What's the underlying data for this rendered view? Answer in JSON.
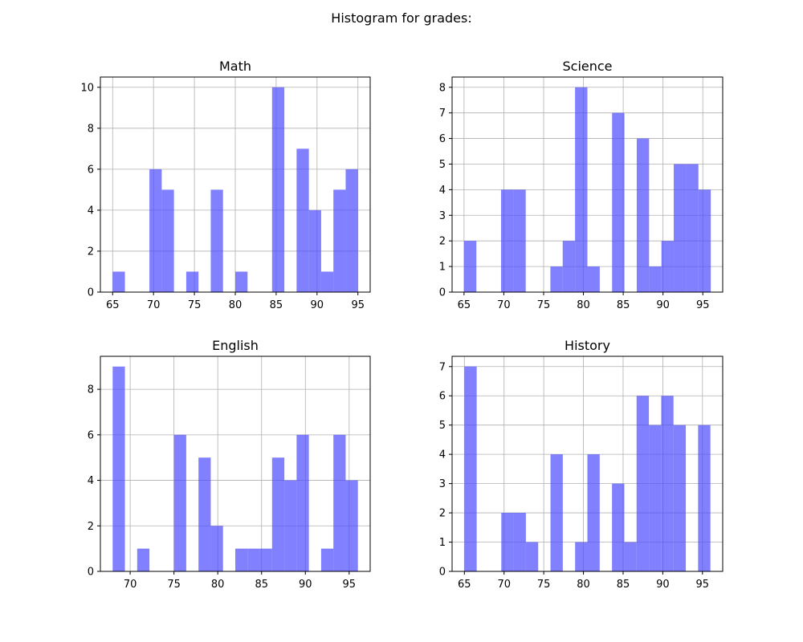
{
  "figure": {
    "title": "Histogram for grades:"
  },
  "style": {
    "bar_color": "#4b4bff",
    "bar_alpha": 0.7,
    "grid_color": "#b0b0b0"
  },
  "chart_data": [
    {
      "type": "bar",
      "title": "Math",
      "xlim": [
        63.5,
        96.5
      ],
      "ylim": [
        0,
        10.5
      ],
      "xticks": [
        65,
        70,
        75,
        80,
        85,
        90,
        95
      ],
      "yticks": [
        0,
        2,
        4,
        6,
        8,
        10
      ],
      "grid": true,
      "bins": [
        {
          "x0": 65,
          "x1": 66.5,
          "count": 1
        },
        {
          "x0": 66.5,
          "x1": 68,
          "count": 0
        },
        {
          "x0": 68,
          "x1": 69.5,
          "count": 0
        },
        {
          "x0": 69.5,
          "x1": 71,
          "count": 6
        },
        {
          "x0": 71,
          "x1": 72.5,
          "count": 5
        },
        {
          "x0": 72.5,
          "x1": 74,
          "count": 0
        },
        {
          "x0": 74,
          "x1": 75.5,
          "count": 1
        },
        {
          "x0": 75.5,
          "x1": 77,
          "count": 0
        },
        {
          "x0": 77,
          "x1": 78.5,
          "count": 5
        },
        {
          "x0": 78.5,
          "x1": 80,
          "count": 0
        },
        {
          "x0": 80,
          "x1": 81.5,
          "count": 1
        },
        {
          "x0": 81.5,
          "x1": 83,
          "count": 0
        },
        {
          "x0": 83,
          "x1": 84.5,
          "count": 0
        },
        {
          "x0": 84.5,
          "x1": 86,
          "count": 10
        },
        {
          "x0": 86,
          "x1": 87.5,
          "count": 0
        },
        {
          "x0": 87.5,
          "x1": 89,
          "count": 7
        },
        {
          "x0": 89,
          "x1": 90.5,
          "count": 4
        },
        {
          "x0": 90.5,
          "x1": 92,
          "count": 1
        },
        {
          "x0": 92,
          "x1": 93.5,
          "count": 5
        },
        {
          "x0": 93.5,
          "x1": 95,
          "count": 6
        }
      ]
    },
    {
      "type": "bar",
      "title": "Science",
      "xlim": [
        63.5,
        97.5
      ],
      "ylim": [
        0,
        8.4
      ],
      "xticks": [
        65,
        70,
        75,
        80,
        85,
        90,
        95
      ],
      "yticks": [
        0,
        1,
        2,
        3,
        4,
        5,
        6,
        7,
        8
      ],
      "grid": true,
      "bins": [
        {
          "x0": 65,
          "x1": 66.55,
          "count": 2
        },
        {
          "x0": 66.55,
          "x1": 68.1,
          "count": 0
        },
        {
          "x0": 68.1,
          "x1": 69.65,
          "count": 0
        },
        {
          "x0": 69.65,
          "x1": 71.2,
          "count": 4
        },
        {
          "x0": 71.2,
          "x1": 72.75,
          "count": 4
        },
        {
          "x0": 72.75,
          "x1": 74.3,
          "count": 0
        },
        {
          "x0": 74.3,
          "x1": 75.85,
          "count": 0
        },
        {
          "x0": 75.85,
          "x1": 77.4,
          "count": 1
        },
        {
          "x0": 77.4,
          "x1": 78.95,
          "count": 2
        },
        {
          "x0": 78.95,
          "x1": 80.5,
          "count": 8
        },
        {
          "x0": 80.5,
          "x1": 82.05,
          "count": 1
        },
        {
          "x0": 82.05,
          "x1": 83.6,
          "count": 0
        },
        {
          "x0": 83.6,
          "x1": 85.15,
          "count": 7
        },
        {
          "x0": 85.15,
          "x1": 86.7,
          "count": 0
        },
        {
          "x0": 86.7,
          "x1": 88.25,
          "count": 6
        },
        {
          "x0": 88.25,
          "x1": 89.8,
          "count": 1
        },
        {
          "x0": 89.8,
          "x1": 91.35,
          "count": 2
        },
        {
          "x0": 91.35,
          "x1": 92.9,
          "count": 5
        },
        {
          "x0": 92.9,
          "x1": 94.45,
          "count": 5
        },
        {
          "x0": 94.45,
          "x1": 96,
          "count": 4
        }
      ]
    },
    {
      "type": "bar",
      "title": "English",
      "xlim": [
        66.6,
        97.4
      ],
      "ylim": [
        0,
        9.45
      ],
      "xticks": [
        70,
        75,
        80,
        85,
        90,
        95
      ],
      "yticks": [
        0,
        2,
        4,
        6,
        8
      ],
      "grid": true,
      "bins": [
        {
          "x0": 68,
          "x1": 69.4,
          "count": 9
        },
        {
          "x0": 69.4,
          "x1": 70.8,
          "count": 0
        },
        {
          "x0": 70.8,
          "x1": 72.2,
          "count": 1
        },
        {
          "x0": 72.2,
          "x1": 73.6,
          "count": 0
        },
        {
          "x0": 73.6,
          "x1": 75,
          "count": 0
        },
        {
          "x0": 75,
          "x1": 76.4,
          "count": 6
        },
        {
          "x0": 76.4,
          "x1": 77.8,
          "count": 0
        },
        {
          "x0": 77.8,
          "x1": 79.2,
          "count": 5
        },
        {
          "x0": 79.2,
          "x1": 80.6,
          "count": 2
        },
        {
          "x0": 80.6,
          "x1": 82,
          "count": 0
        },
        {
          "x0": 82,
          "x1": 83.4,
          "count": 1
        },
        {
          "x0": 83.4,
          "x1": 84.8,
          "count": 1
        },
        {
          "x0": 84.8,
          "x1": 86.2,
          "count": 1
        },
        {
          "x0": 86.2,
          "x1": 87.6,
          "count": 5
        },
        {
          "x0": 87.6,
          "x1": 89,
          "count": 4
        },
        {
          "x0": 89,
          "x1": 90.4,
          "count": 6
        },
        {
          "x0": 90.4,
          "x1": 91.8,
          "count": 0
        },
        {
          "x0": 91.8,
          "x1": 93.2,
          "count": 1
        },
        {
          "x0": 93.2,
          "x1": 94.6,
          "count": 6
        },
        {
          "x0": 94.6,
          "x1": 96,
          "count": 4
        }
      ]
    },
    {
      "type": "bar",
      "title": "History",
      "xlim": [
        63.45,
        97.55
      ],
      "ylim": [
        0,
        7.35
      ],
      "xticks": [
        65,
        70,
        75,
        80,
        85,
        90,
        95
      ],
      "yticks": [
        0,
        1,
        2,
        3,
        4,
        5,
        6,
        7
      ],
      "grid": true,
      "bins": [
        {
          "x0": 65,
          "x1": 66.55,
          "count": 7
        },
        {
          "x0": 66.55,
          "x1": 68.1,
          "count": 0
        },
        {
          "x0": 68.1,
          "x1": 69.65,
          "count": 0
        },
        {
          "x0": 69.65,
          "x1": 71.2,
          "count": 2
        },
        {
          "x0": 71.2,
          "x1": 72.75,
          "count": 2
        },
        {
          "x0": 72.75,
          "x1": 74.3,
          "count": 1
        },
        {
          "x0": 74.3,
          "x1": 75.85,
          "count": 0
        },
        {
          "x0": 75.85,
          "x1": 77.4,
          "count": 4
        },
        {
          "x0": 77.4,
          "x1": 78.95,
          "count": 0
        },
        {
          "x0": 78.95,
          "x1": 80.5,
          "count": 1
        },
        {
          "x0": 80.5,
          "x1": 82.05,
          "count": 4
        },
        {
          "x0": 82.05,
          "x1": 83.6,
          "count": 0
        },
        {
          "x0": 83.6,
          "x1": 85.15,
          "count": 3
        },
        {
          "x0": 85.15,
          "x1": 86.7,
          "count": 1
        },
        {
          "x0": 86.7,
          "x1": 88.25,
          "count": 6
        },
        {
          "x0": 88.25,
          "x1": 89.8,
          "count": 5
        },
        {
          "x0": 89.8,
          "x1": 91.35,
          "count": 6
        },
        {
          "x0": 91.35,
          "x1": 92.9,
          "count": 5
        },
        {
          "x0": 92.9,
          "x1": 94.45,
          "count": 0
        },
        {
          "x0": 94.45,
          "x1": 96,
          "count": 5
        }
      ]
    }
  ]
}
